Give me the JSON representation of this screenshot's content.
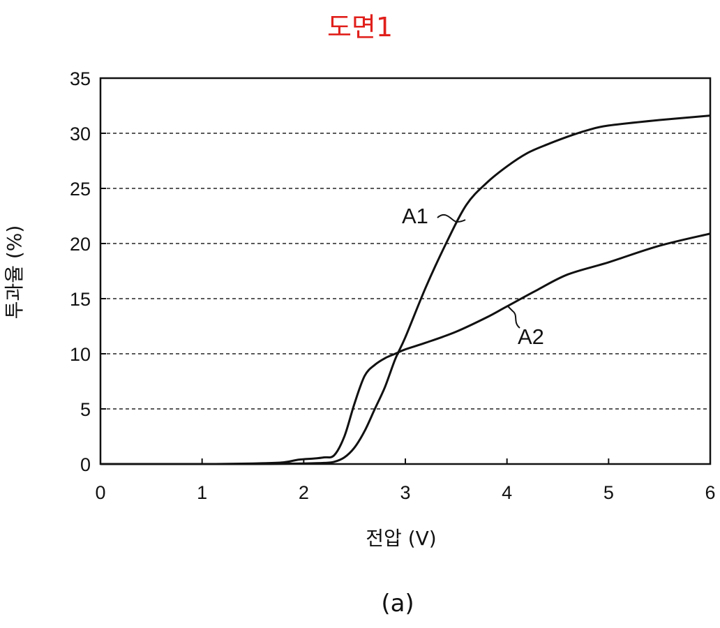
{
  "figure_title": "도면1",
  "caption": "(a)",
  "chart_data": {
    "type": "line",
    "title": "",
    "xlabel": "전압 (V)",
    "ylabel": "투과율 (%)",
    "xlim": [
      0,
      6
    ],
    "ylim": [
      0,
      35
    ],
    "xticks": [
      0,
      1,
      2,
      3,
      4,
      5,
      6
    ],
    "yticks": [
      0,
      5,
      10,
      15,
      20,
      25,
      30,
      35
    ],
    "grid": "horizontal dashed",
    "line_color": "#111111",
    "series": [
      {
        "name": "A1",
        "x": [
          0,
          1.0,
          1.5,
          2.0,
          2.2,
          2.3,
          2.4,
          2.5,
          2.6,
          2.7,
          2.8,
          2.9,
          3.0,
          3.2,
          3.4,
          3.6,
          3.8,
          4.0,
          4.2,
          4.4,
          4.6,
          4.8,
          5.0,
          5.5,
          6.0
        ],
        "y": [
          0,
          0,
          0,
          0.05,
          0.1,
          0.2,
          0.6,
          1.5,
          3.0,
          5.0,
          7.0,
          9.5,
          11.5,
          16.0,
          20.0,
          23.5,
          25.5,
          27.0,
          28.2,
          29.0,
          29.7,
          30.3,
          30.7,
          31.2,
          31.6
        ]
      },
      {
        "name": "A2",
        "x": [
          0,
          1.0,
          1.5,
          1.8,
          1.95,
          2.1,
          2.2,
          2.3,
          2.4,
          2.5,
          2.6,
          2.7,
          2.8,
          2.9,
          3.0,
          3.2,
          3.5,
          3.8,
          4.0,
          4.3,
          4.6,
          5.0,
          5.5,
          6.0
        ],
        "y": [
          0,
          0,
          0.05,
          0.15,
          0.4,
          0.5,
          0.6,
          0.8,
          2.5,
          5.5,
          8.0,
          9.0,
          9.6,
          10.0,
          10.4,
          11.0,
          12.0,
          13.3,
          14.3,
          15.8,
          17.2,
          18.3,
          19.8,
          20.9
        ]
      }
    ]
  }
}
